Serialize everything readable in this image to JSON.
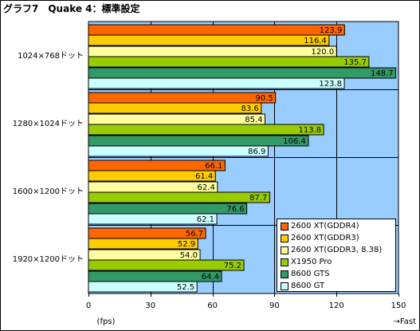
{
  "window_title": "グラフ7　Quake 4：標準設定",
  "chart_data": {
    "type": "bar",
    "orientation": "horizontal",
    "title": "グラフ7　Quake 4：標準設定",
    "categories": [
      "1024×768ドット",
      "1280×1024ドット",
      "1600×1200ドット",
      "1920×1200ドット"
    ],
    "series": [
      {
        "name": "2600 XT(GDDR4)",
        "color": "#ff6600",
        "values": [
          123.9,
          90.5,
          66.1,
          56.7
        ]
      },
      {
        "name": "2600 XT(GDDR3)",
        "color": "#ffcc00",
        "values": [
          116.4,
          83.6,
          61.4,
          52.9
        ]
      },
      {
        "name": "2600 XT(GDDR3, 8.38)",
        "color": "#ffffa0",
        "values": [
          120.0,
          85.4,
          62.4,
          54.0
        ]
      },
      {
        "name": "X1950 Pro",
        "color": "#99cc00",
        "values": [
          135.7,
          113.8,
          87.7,
          75.2
        ]
      },
      {
        "name": "8600 GTS",
        "color": "#339966",
        "values": [
          148.7,
          106.4,
          76.6,
          64.4
        ]
      },
      {
        "name": "8600 GT",
        "color": "#ccffff",
        "values": [
          123.8,
          86.9,
          62.1,
          52.5
        ]
      }
    ],
    "value_labels": [
      [
        "123.9",
        "116.4",
        "120.0",
        "135.7",
        "148.7",
        "123.8"
      ],
      [
        "90.5",
        "83.6",
        "85.4",
        "113.8",
        "106.4",
        "86.9"
      ],
      [
        "66.1",
        "61.4",
        "62.4",
        "87.7",
        "76.6",
        "62.1"
      ],
      [
        "56.7",
        "52.9",
        "54.0",
        "75.2",
        "64.4",
        "52.5"
      ]
    ],
    "x_ticks": [
      "0",
      "30",
      "60",
      "90",
      "120",
      "150"
    ],
    "xlim": [
      0,
      150
    ],
    "xlabel": "(fps)",
    "x_direction_label": "→Fast",
    "plot_background": "#99ccff",
    "grid": true,
    "legend_position": "bottom-right"
  }
}
